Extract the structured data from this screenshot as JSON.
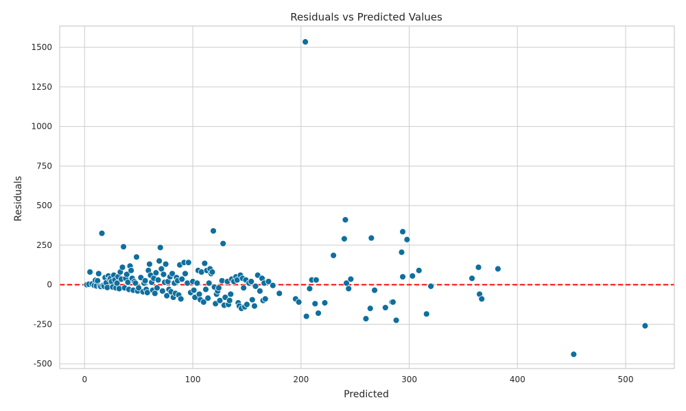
{
  "chart_data": {
    "type": "scatter",
    "title": "Residuals vs Predicted Values",
    "xlabel": "Predicted",
    "ylabel": "Residuals",
    "xlim": [
      -23,
      545
    ],
    "ylim": [
      -530,
      1635
    ],
    "xticks": [
      0,
      100,
      200,
      300,
      400,
      500
    ],
    "yticks": [
      -500,
      -250,
      0,
      250,
      500,
      750,
      1000,
      1250,
      1500
    ],
    "grid": true,
    "reference_line": {
      "y": 0,
      "color": "#ff0000",
      "style": "dashed"
    },
    "point_color": "#0f6f9e",
    "points": [
      [
        2,
        0
      ],
      [
        4,
        3
      ],
      [
        5,
        80
      ],
      [
        7,
        5
      ],
      [
        9,
        -5
      ],
      [
        10,
        28
      ],
      [
        11,
        -8
      ],
      [
        12,
        25
      ],
      [
        13,
        70
      ],
      [
        14,
        -8
      ],
      [
        15,
        -12
      ],
      [
        16,
        325
      ],
      [
        17,
        -5
      ],
      [
        18,
        -10
      ],
      [
        19,
        45
      ],
      [
        20,
        12
      ],
      [
        21,
        -18
      ],
      [
        22,
        55
      ],
      [
        23,
        35
      ],
      [
        24,
        40
      ],
      [
        25,
        20
      ],
      [
        26,
        -15
      ],
      [
        27,
        60
      ],
      [
        28,
        30
      ],
      [
        29,
        -20
      ],
      [
        30,
        10
      ],
      [
        31,
        50
      ],
      [
        32,
        -25
      ],
      [
        33,
        80
      ],
      [
        34,
        35
      ],
      [
        35,
        110
      ],
      [
        36,
        240
      ],
      [
        37,
        -20
      ],
      [
        38,
        40
      ],
      [
        39,
        65
      ],
      [
        40,
        15
      ],
      [
        41,
        -30
      ],
      [
        42,
        118
      ],
      [
        43,
        90
      ],
      [
        44,
        40
      ],
      [
        45,
        -35
      ],
      [
        46,
        20
      ],
      [
        47,
        10
      ],
      [
        48,
        175
      ],
      [
        49,
        -40
      ],
      [
        50,
        -20
      ],
      [
        52,
        45
      ],
      [
        54,
        -45
      ],
      [
        55,
        10
      ],
      [
        56,
        25
      ],
      [
        57,
        -30
      ],
      [
        58,
        -50
      ],
      [
        59,
        90
      ],
      [
        60,
        130
      ],
      [
        61,
        60
      ],
      [
        62,
        15
      ],
      [
        63,
        -35
      ],
      [
        64,
        40
      ],
      [
        65,
        -55
      ],
      [
        66,
        75
      ],
      [
        67,
        -20
      ],
      [
        68,
        30
      ],
      [
        69,
        150
      ],
      [
        70,
        235
      ],
      [
        71,
        100
      ],
      [
        72,
        -40
      ],
      [
        73,
        65
      ],
      [
        74,
        15
      ],
      [
        75,
        130
      ],
      [
        76,
        -70
      ],
      [
        77,
        20
      ],
      [
        78,
        -30
      ],
      [
        79,
        50
      ],
      [
        80,
        -45
      ],
      [
        81,
        70
      ],
      [
        82,
        -80
      ],
      [
        83,
        10
      ],
      [
        84,
        -55
      ],
      [
        85,
        45
      ],
      [
        86,
        25
      ],
      [
        87,
        -65
      ],
      [
        88,
        125
      ],
      [
        89,
        -90
      ],
      [
        90,
        35
      ],
      [
        92,
        140
      ],
      [
        93,
        70
      ],
      [
        95,
        10
      ],
      [
        96,
        140
      ],
      [
        98,
        -50
      ],
      [
        100,
        20
      ],
      [
        101,
        -35
      ],
      [
        102,
        -80
      ],
      [
        104,
        10
      ],
      [
        105,
        90
      ],
      [
        106,
        -60
      ],
      [
        107,
        -95
      ],
      [
        108,
        80
      ],
      [
        110,
        -110
      ],
      [
        111,
        135
      ],
      [
        112,
        -30
      ],
      [
        113,
        90
      ],
      [
        114,
        -85
      ],
      [
        115,
        10
      ],
      [
        116,
        100
      ],
      [
        117,
        70
      ],
      [
        118,
        80
      ],
      [
        119,
        340
      ],
      [
        120,
        -15
      ],
      [
        121,
        -120
      ],
      [
        122,
        -60
      ],
      [
        123,
        -40
      ],
      [
        124,
        -20
      ],
      [
        125,
        -100
      ],
      [
        127,
        25
      ],
      [
        128,
        260
      ],
      [
        129,
        -130
      ],
      [
        130,
        -80
      ],
      [
        132,
        20
      ],
      [
        133,
        -125
      ],
      [
        134,
        -100
      ],
      [
        135,
        -60
      ],
      [
        136,
        35
      ],
      [
        138,
        20
      ],
      [
        140,
        50
      ],
      [
        141,
        30
      ],
      [
        142,
        -115
      ],
      [
        143,
        -135
      ],
      [
        144,
        60
      ],
      [
        145,
        -150
      ],
      [
        146,
        40
      ],
      [
        147,
        -20
      ],
      [
        148,
        -140
      ],
      [
        149,
        30
      ],
      [
        150,
        -125
      ],
      [
        152,
        10
      ],
      [
        154,
        20
      ],
      [
        155,
        -95
      ],
      [
        157,
        -135
      ],
      [
        158,
        -10
      ],
      [
        160,
        60
      ],
      [
        162,
        -40
      ],
      [
        164,
        40
      ],
      [
        165,
        -100
      ],
      [
        166,
        10
      ],
      [
        167,
        -90
      ],
      [
        170,
        20
      ],
      [
        174,
        -5
      ],
      [
        180,
        -55
      ],
      [
        195,
        -90
      ],
      [
        198,
        -110
      ],
      [
        204,
        1535
      ],
      [
        205,
        -200
      ],
      [
        208,
        -25
      ],
      [
        210,
        30
      ],
      [
        213,
        -120
      ],
      [
        214,
        30
      ],
      [
        216,
        -180
      ],
      [
        222,
        -115
      ],
      [
        230,
        185
      ],
      [
        240,
        290
      ],
      [
        241,
        410
      ],
      [
        242,
        10
      ],
      [
        244,
        -25
      ],
      [
        246,
        35
      ],
      [
        260,
        -215
      ],
      [
        264,
        -150
      ],
      [
        265,
        295
      ],
      [
        268,
        -35
      ],
      [
        278,
        -145
      ],
      [
        284,
        -110
      ],
      [
        285,
        -110
      ],
      [
        288,
        -225
      ],
      [
        293,
        205
      ],
      [
        294,
        50
      ],
      [
        294,
        335
      ],
      [
        298,
        285
      ],
      [
        303,
        55
      ],
      [
        309,
        90
      ],
      [
        316,
        -185
      ],
      [
        320,
        -10
      ],
      [
        358,
        40
      ],
      [
        364,
        110
      ],
      [
        365,
        -60
      ],
      [
        367,
        -90
      ],
      [
        382,
        100
      ],
      [
        452,
        -440
      ],
      [
        518,
        -260
      ]
    ]
  }
}
